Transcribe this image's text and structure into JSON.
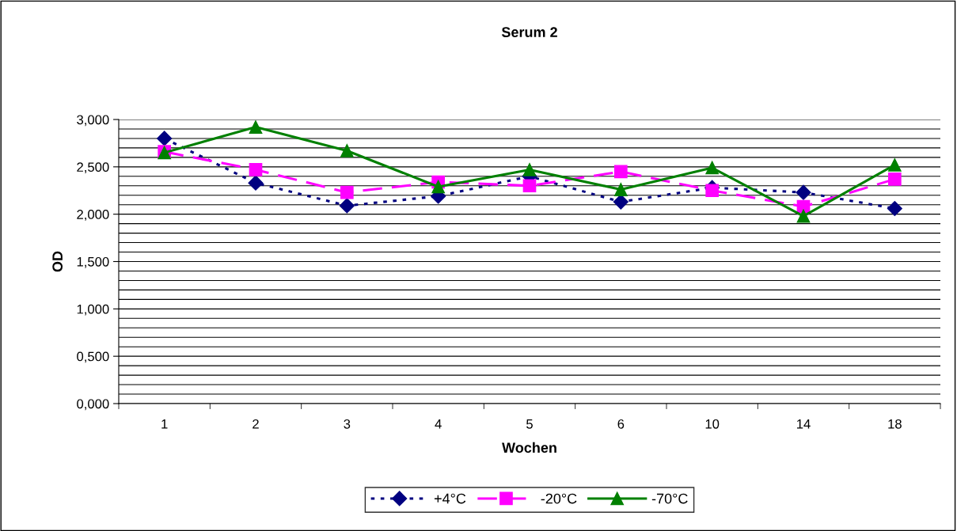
{
  "chart_data": {
    "type": "line",
    "title": "Serum 2",
    "xlabel": "Wochen",
    "ylabel": "OD",
    "categories": [
      "1",
      "2",
      "3",
      "4",
      "5",
      "6",
      "10",
      "14",
      "18"
    ],
    "series": [
      {
        "name": "+4°C",
        "color": "#000080",
        "marker": "diamond",
        "line_style": "dotted",
        "values": [
          2.8,
          2.33,
          2.09,
          2.19,
          2.4,
          2.13,
          2.28,
          2.23,
          2.06
        ]
      },
      {
        "name": "-20°C",
        "color": "#ff00ff",
        "marker": "square",
        "line_style": "dashed",
        "values": [
          2.66,
          2.47,
          2.23,
          2.34,
          2.3,
          2.45,
          2.25,
          2.08,
          2.37
        ]
      },
      {
        "name": "-70°C",
        "color": "#008000",
        "marker": "triangle",
        "line_style": "solid",
        "values": [
          2.65,
          2.92,
          2.67,
          2.29,
          2.47,
          2.26,
          2.49,
          1.98,
          2.52
        ]
      }
    ],
    "ylim": [
      0,
      3
    ],
    "yticks": [
      {
        "value": 0,
        "label": "0,000"
      },
      {
        "value": 0.1,
        "label": null
      },
      {
        "value": 0.2,
        "label": null
      },
      {
        "value": 0.3,
        "label": null
      },
      {
        "value": 0.4,
        "label": null
      },
      {
        "value": 0.5,
        "label": "0,500"
      },
      {
        "value": 0.6,
        "label": null
      },
      {
        "value": 0.7,
        "label": null
      },
      {
        "value": 0.8,
        "label": null
      },
      {
        "value": 0.9,
        "label": null
      },
      {
        "value": 1,
        "label": "1,000"
      },
      {
        "value": 1.1,
        "label": null
      },
      {
        "value": 1.2,
        "label": null
      },
      {
        "value": 1.3,
        "label": null
      },
      {
        "value": 1.4,
        "label": null
      },
      {
        "value": 1.5,
        "label": "1,500"
      },
      {
        "value": 1.6,
        "label": null
      },
      {
        "value": 1.7,
        "label": null
      },
      {
        "value": 1.8,
        "label": null
      },
      {
        "value": 1.9,
        "label": null
      },
      {
        "value": 2,
        "label": "2,000"
      },
      {
        "value": 2.1,
        "label": null
      },
      {
        "value": 2.2,
        "label": null
      },
      {
        "value": 2.3,
        "label": null
      },
      {
        "value": 2.4,
        "label": null
      },
      {
        "value": 2.5,
        "label": "2,500"
      },
      {
        "value": 2.6,
        "label": null
      },
      {
        "value": 2.7,
        "label": null
      },
      {
        "value": 2.8,
        "label": null
      },
      {
        "value": 2.9,
        "label": null
      },
      {
        "value": 3,
        "label": "3,000"
      }
    ],
    "grid": "y",
    "legend": "bottom"
  }
}
